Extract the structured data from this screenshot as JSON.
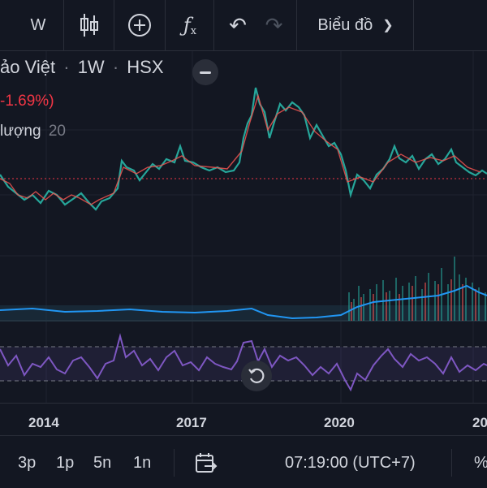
{
  "toolbar": {
    "interval_label": "W",
    "chart_type_label": "Biểu đồ",
    "icons": [
      "candles-icon",
      "add-indicator-icon",
      "fx-icon",
      "undo-icon",
      "redo-icon",
      "chevron-down-icon"
    ]
  },
  "legend": {
    "symbol_name": "ảo Việt",
    "interval": "1W",
    "exchange": "HSX",
    "change_percent": "-1.69%)",
    "volume_label": "lượng",
    "volume_period": "20"
  },
  "x_axis": {
    "labels": [
      "2014",
      "2017",
      "2020",
      "20"
    ]
  },
  "bottom_bar": {
    "ranges": [
      "3p",
      "1p",
      "5n",
      "1n"
    ],
    "time": "07:19:00 (UTC+7)",
    "percent_label": "%"
  },
  "colors": {
    "background": "#131722",
    "up": "#26a69a",
    "down": "#ef5350",
    "volume_ma": "#2196f3",
    "rsi_line": "#7e57c2",
    "price_line": "#f23645"
  }
}
